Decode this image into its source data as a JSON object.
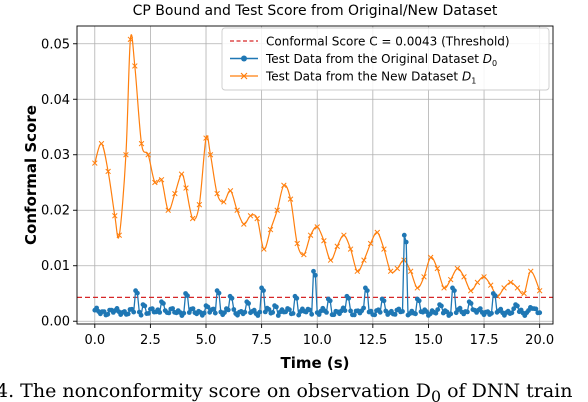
{
  "chart_data": {
    "type": "line",
    "title": "CP Bound and Test Score from Original/New Dataset",
    "xlabel": "Time (s)",
    "ylabel": "Conformal Score",
    "xlim": [
      -0.8,
      20.6
    ],
    "ylim": [
      -0.0005,
      0.0532
    ],
    "xticks": [
      0.0,
      2.5,
      5.0,
      7.5,
      10.0,
      12.5,
      15.0,
      17.5,
      20.0
    ],
    "xtick_labels": [
      "0.0",
      "2.5",
      "5.0",
      "7.5",
      "10.0",
      "12.5",
      "15.0",
      "17.5",
      "20.0"
    ],
    "yticks": [
      0.0,
      0.01,
      0.02,
      0.03,
      0.04,
      0.05
    ],
    "ytick_labels": [
      "0.00",
      "0.01",
      "0.02",
      "0.03",
      "0.04",
      "0.05"
    ],
    "grid": true,
    "legend_position": "top-right",
    "threshold": {
      "name": "Conformal Score C = 0.0043 (Threshold)",
      "value": 0.0043,
      "color": "#d62728",
      "style": "dashed"
    },
    "series": [
      {
        "name": "Test Data from the Original Dataset",
        "name_subscript": "0",
        "name_symbol": "D",
        "color": "#1f77b4",
        "marker": "circle",
        "baseline": 0.0017,
        "x": [
          0.0,
          20.0
        ],
        "spikes": [
          {
            "x": 1.8,
            "y": 0.0055
          },
          {
            "x": 2.2,
            "y": 0.003
          },
          {
            "x": 3.0,
            "y": 0.0035
          },
          {
            "x": 4.1,
            "y": 0.005
          },
          {
            "x": 5.0,
            "y": 0.0028
          },
          {
            "x": 5.5,
            "y": 0.0055
          },
          {
            "x": 6.1,
            "y": 0.0045
          },
          {
            "x": 6.8,
            "y": 0.0035
          },
          {
            "x": 7.5,
            "y": 0.006
          },
          {
            "x": 8.1,
            "y": 0.0028
          },
          {
            "x": 9.0,
            "y": 0.0045
          },
          {
            "x": 9.8,
            "y": 0.009
          },
          {
            "x": 10.5,
            "y": 0.004
          },
          {
            "x": 11.3,
            "y": 0.0045
          },
          {
            "x": 12.2,
            "y": 0.006
          },
          {
            "x": 12.9,
            "y": 0.004
          },
          {
            "x": 13.9,
            "y": 0.0155
          },
          {
            "x": 14.5,
            "y": 0.004
          },
          {
            "x": 15.5,
            "y": 0.003
          },
          {
            "x": 16.1,
            "y": 0.006
          },
          {
            "x": 16.8,
            "y": 0.0035
          },
          {
            "x": 17.9,
            "y": 0.005
          },
          {
            "x": 18.9,
            "y": 0.003
          },
          {
            "x": 19.6,
            "y": 0.0025
          }
        ]
      },
      {
        "name": "Test Data from the New Dataset",
        "name_subscript": "1",
        "name_symbol": "D",
        "color": "#ff7f0e",
        "marker": "x",
        "x": [
          0.0,
          0.3,
          0.6,
          0.9,
          1.1,
          1.4,
          1.6,
          1.8,
          2.1,
          2.4,
          2.7,
          3.0,
          3.3,
          3.6,
          3.9,
          4.1,
          4.4,
          4.7,
          5.0,
          5.2,
          5.5,
          5.8,
          6.1,
          6.4,
          6.7,
          7.0,
          7.3,
          7.6,
          7.9,
          8.2,
          8.5,
          8.8,
          9.1,
          9.4,
          9.7,
          10.0,
          10.3,
          10.6,
          10.9,
          11.2,
          11.5,
          11.8,
          12.1,
          12.4,
          12.7,
          13.0,
          13.3,
          13.6,
          13.9,
          14.2,
          14.5,
          14.8,
          15.1,
          15.4,
          15.7,
          16.0,
          16.3,
          16.6,
          16.9,
          17.2,
          17.5,
          17.8,
          18.1,
          18.4,
          18.7,
          19.0,
          19.3,
          19.6,
          20.0
        ],
        "y": [
          0.0285,
          0.032,
          0.027,
          0.019,
          0.0155,
          0.03,
          0.0508,
          0.046,
          0.032,
          0.03,
          0.025,
          0.0255,
          0.02,
          0.023,
          0.0265,
          0.024,
          0.0185,
          0.021,
          0.033,
          0.03,
          0.023,
          0.0215,
          0.0235,
          0.02,
          0.0175,
          0.019,
          0.0185,
          0.013,
          0.0165,
          0.02,
          0.0245,
          0.022,
          0.014,
          0.012,
          0.0155,
          0.017,
          0.0145,
          0.011,
          0.0135,
          0.0155,
          0.013,
          0.009,
          0.011,
          0.014,
          0.016,
          0.013,
          0.009,
          0.0095,
          0.011,
          0.009,
          0.006,
          0.008,
          0.0115,
          0.0095,
          0.006,
          0.0075,
          0.0095,
          0.008,
          0.0055,
          0.007,
          0.008,
          0.0065,
          0.0045,
          0.006,
          0.007,
          0.006,
          0.005,
          0.009,
          0.0055
        ]
      }
    ]
  },
  "caption": "4.   The nonconformity score on observation D",
  "caption_sub": "0",
  "caption_rest": " of DNN train"
}
